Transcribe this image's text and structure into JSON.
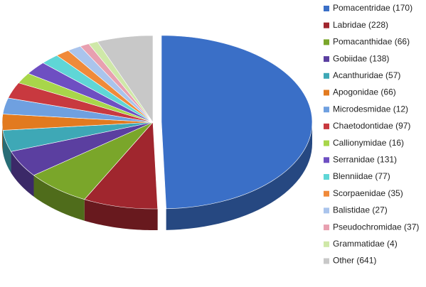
{
  "chart_data": {
    "type": "pie3d",
    "series": [
      {
        "name": "Pomacentridae (170)",
        "color": "#3a6fc7",
        "value": 49.5
      },
      {
        "name": "Labridae (228)",
        "color": "#a0262e",
        "value": 8
      },
      {
        "name": "Pomacanthidae (66)",
        "color": "#7aa62a",
        "value": 7
      },
      {
        "name": "Gobiidae (138)",
        "color": "#5b3fa0",
        "value": 5
      },
      {
        "name": "Acanthuridae (57)",
        "color": "#3ea8b6",
        "value": 4
      },
      {
        "name": "Apogonidae (66)",
        "color": "#e27a1f",
        "value": 3
      },
      {
        "name": "Microdesmidae (12)",
        "color": "#6fa0e0",
        "value": 3
      },
      {
        "name": "Chaetodontidae (97)",
        "color": "#c8393f",
        "value": 3
      },
      {
        "name": "Callionymidae (16)",
        "color": "#a8d64a",
        "value": 2
      },
      {
        "name": "Serranidae (131)",
        "color": "#6e4fc2",
        "value": 2.5
      },
      {
        "name": "Blenniidae (77)",
        "color": "#5fd6d6",
        "value": 2
      },
      {
        "name": "Scorpaenidae (35)",
        "color": "#f08a3a",
        "value": 1.5
      },
      {
        "name": "Balistidae (27)",
        "color": "#aac4ec",
        "value": 1.5
      },
      {
        "name": "Pseudochromidae (37)",
        "color": "#e8a0b0",
        "value": 1
      },
      {
        "name": "Grammatidae (4)",
        "color": "#cfe8a8",
        "value": 1
      },
      {
        "name": "Other (641)",
        "color": "#c8c8c8",
        "value": 6
      }
    ],
    "legend": "right"
  }
}
